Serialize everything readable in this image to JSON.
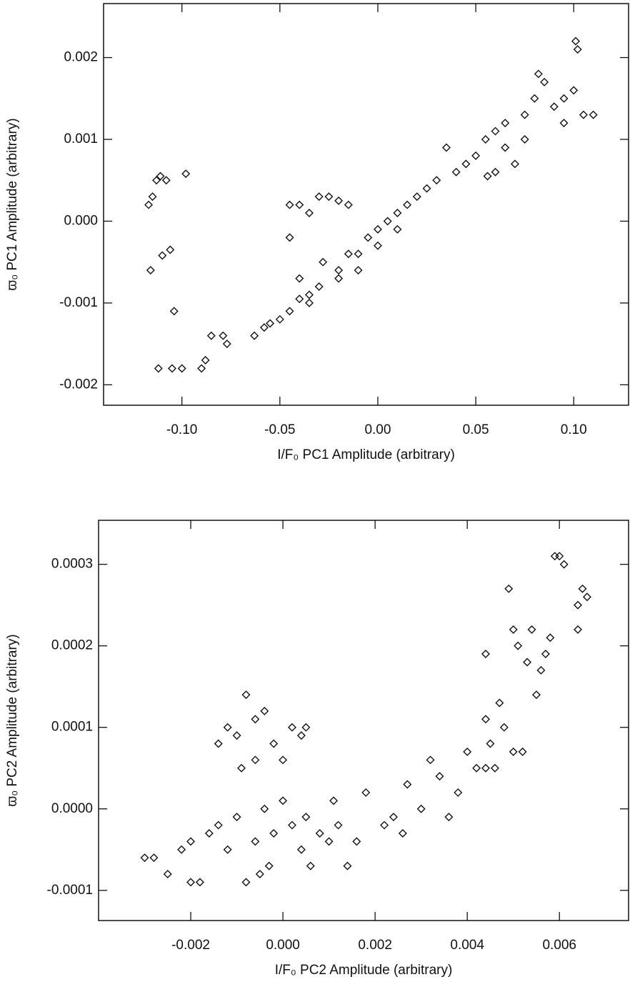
{
  "chart_data": [
    {
      "type": "scatter",
      "marker": "diamond",
      "color": "#111111",
      "x_label": "I/F₀ PC1 Amplitude (arbitrary)",
      "y_label": "ϖ₀ PC1 Amplitude (arbitrary)",
      "xlim": [
        -0.14,
        0.128
      ],
      "ylim": [
        -0.00225,
        0.00266
      ],
      "xticks": [
        {
          "value": -0.1,
          "label": "-0.10"
        },
        -0.05,
        {
          "value": 0,
          "label": "0.00"
        },
        0.05,
        {
          "value": 0.1,
          "label": "0.10"
        }
      ],
      "yticks": [
        -0.002,
        -0.001,
        {
          "value": 0,
          "label": "0.000"
        },
        0.001,
        0.002
      ],
      "x": [
        -0.117,
        -0.115,
        -0.113,
        -0.111,
        -0.108,
        -0.098,
        -0.116,
        -0.11,
        -0.106,
        -0.104,
        -0.112,
        -0.105,
        -0.1,
        -0.09,
        -0.088,
        -0.085,
        -0.079,
        -0.077,
        -0.063,
        -0.058,
        -0.055,
        -0.05,
        -0.045,
        -0.04,
        -0.035,
        -0.03,
        -0.045,
        -0.04,
        -0.035,
        -0.045,
        -0.03,
        -0.025,
        -0.02,
        -0.015,
        -0.028,
        -0.04,
        -0.02,
        -0.015,
        -0.01,
        -0.005,
        0.0,
        0.005,
        0.01,
        0.015,
        0.02,
        0.025,
        0.03,
        0.035,
        0.04,
        0.045,
        0.05,
        0.055,
        0.06,
        0.065,
        0.07,
        0.065,
        0.075,
        0.08,
        0.082,
        0.085,
        0.09,
        0.095,
        0.1,
        0.102,
        0.101,
        0.105,
        0.11,
        0.095,
        0.075,
        0.06,
        0.056,
        -0.01,
        0.0,
        0.01,
        -0.02,
        -0.035
      ],
      "values": [
        0.0002,
        0.0003,
        0.0005,
        0.00055,
        0.0005,
        0.00058,
        -0.0006,
        -0.00042,
        -0.00035,
        -0.0011,
        -0.0018,
        -0.0018,
        -0.0018,
        -0.0018,
        -0.0017,
        -0.0014,
        -0.0014,
        -0.0015,
        -0.0014,
        -0.0013,
        -0.00125,
        -0.0012,
        -0.0011,
        -0.00095,
        -0.0009,
        -0.0008,
        0.0002,
        0.0002,
        0.0001,
        -0.0002,
        0.0003,
        0.0003,
        0.00025,
        0.0002,
        -0.0005,
        -0.0007,
        -0.0006,
        -0.0004,
        -0.0004,
        -0.0002,
        -0.0001,
        0.0,
        0.0001,
        0.0002,
        0.0003,
        0.0004,
        0.0005,
        0.0009,
        0.0006,
        0.0007,
        0.0008,
        0.001,
        0.0011,
        0.0009,
        0.0007,
        0.0012,
        0.0013,
        0.0015,
        0.0018,
        0.0017,
        0.0014,
        0.0015,
        0.0016,
        0.0021,
        0.0022,
        0.0013,
        0.0013,
        0.0012,
        0.001,
        0.0006,
        0.00055,
        -0.0006,
        -0.0003,
        -0.0001,
        -0.0007,
        -0.001
      ]
    },
    {
      "type": "scatter",
      "marker": "diamond",
      "color": "#111111",
      "x_label": "I/F₀ PC2 Amplitude (arbitrary)",
      "y_label": "ϖ₀ PC2 Amplitude (arbitrary)",
      "xlim": [
        -0.004,
        0.0075
      ],
      "ylim": [
        -0.000137,
        0.000354
      ],
      "xticks": [
        -0.002,
        {
          "value": 0,
          "label": "0.000"
        },
        0.002,
        0.004,
        0.006
      ],
      "yticks": [
        -0.0001,
        {
          "value": 0,
          "label": "0.0000"
        },
        0.0001,
        0.0002,
        0.0003
      ],
      "x": [
        -0.003,
        -0.0028,
        -0.0025,
        -0.0022,
        -0.002,
        -0.0018,
        -0.0016,
        -0.0014,
        -0.0012,
        -0.001,
        -0.0008,
        -0.0006,
        -0.0004,
        -0.0002,
        0.0,
        0.0002,
        0.0004,
        0.0006,
        0.0008,
        0.001,
        0.0012,
        0.0014,
        0.0016,
        0.0018,
        -0.0014,
        -0.0012,
        -0.001,
        -0.0008,
        -0.0006,
        -0.0004,
        -0.0002,
        0.0,
        0.0002,
        0.0004,
        0.0005,
        -0.0006,
        -0.0009,
        -0.0003,
        -0.0005,
        0.0011,
        0.0005,
        0.0022,
        0.0024,
        0.0026,
        0.0027,
        0.003,
        0.0032,
        0.0034,
        0.0036,
        0.0038,
        0.004,
        0.0042,
        0.0044,
        0.0044,
        0.0045,
        0.0046,
        0.0047,
        0.0048,
        0.005,
        0.0049,
        0.005,
        0.0051,
        0.0052,
        0.0053,
        0.0054,
        0.0055,
        0.0056,
        0.0057,
        0.0058,
        0.0059,
        0.006,
        0.0061,
        0.0064,
        0.0065,
        0.0066,
        0.0064,
        0.0044,
        -0.002
      ],
      "values": [
        -6e-05,
        -6e-05,
        -8e-05,
        -5e-05,
        -4e-05,
        -9e-05,
        -3e-05,
        -2e-05,
        -5e-05,
        -1e-05,
        -9e-05,
        -4e-05,
        0.0,
        -3e-05,
        1e-05,
        -2e-05,
        -5e-05,
        -7e-05,
        -3e-05,
        -4e-05,
        -2e-05,
        -7e-05,
        -4e-05,
        2e-05,
        8e-05,
        0.0001,
        9e-05,
        0.00014,
        0.00011,
        0.00012,
        8e-05,
        6e-05,
        0.0001,
        9e-05,
        0.0001,
        6e-05,
        5e-05,
        -7e-05,
        -8e-05,
        1e-05,
        -1e-05,
        -2e-05,
        -1e-05,
        -3e-05,
        3e-05,
        0.0,
        6e-05,
        4e-05,
        -1e-05,
        2e-05,
        7e-05,
        5e-05,
        5e-05,
        0.00011,
        8e-05,
        5e-05,
        0.00013,
        0.0001,
        7e-05,
        0.00027,
        0.00022,
        0.0002,
        7e-05,
        0.00018,
        0.00022,
        0.00014,
        0.00017,
        0.00019,
        0.00021,
        0.00031,
        0.00031,
        0.0003,
        0.00025,
        0.00027,
        0.00026,
        0.00022,
        0.00019,
        -9e-05
      ]
    }
  ]
}
